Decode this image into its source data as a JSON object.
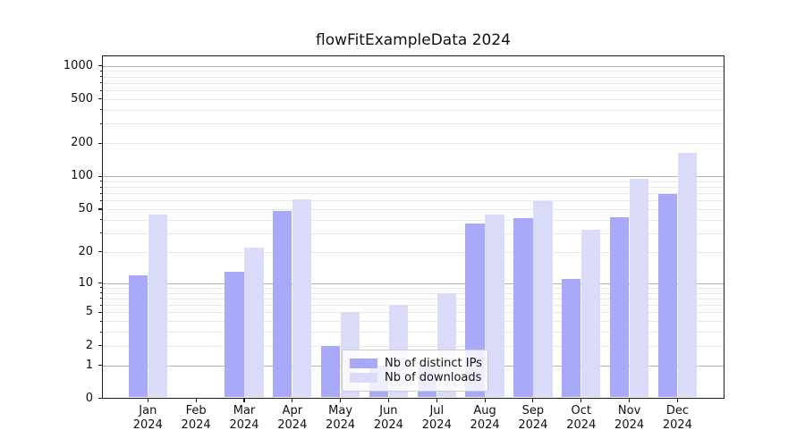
{
  "chart_data": {
    "type": "bar",
    "title": "flowFitExampleData 2024",
    "categories": [
      "Jan\n2024",
      "Feb\n2024",
      "Mar\n2024",
      "Apr\n2024",
      "May\n2024",
      "Jun\n2024",
      "Jul\n2024",
      "Aug\n2024",
      "Sep\n2024",
      "Oct\n2024",
      "Nov\n2024",
      "Dec\n2024"
    ],
    "series": [
      {
        "name": "Nb of distinct IPs",
        "color": "#a9a9f9",
        "values": [
          12,
          0,
          13,
          48,
          2,
          1,
          1,
          37,
          41,
          11,
          42,
          69
        ]
      },
      {
        "name": "Nb of downloads",
        "color": "#dadaf9",
        "values": [
          45,
          0,
          22,
          62,
          5,
          6,
          8,
          45,
          59,
          32,
          95,
          163
        ]
      }
    ],
    "xlabel": "",
    "ylabel": "",
    "yscale": "symlog(log(1+y))",
    "y_ticks": [
      0,
      1,
      2,
      5,
      10,
      20,
      50,
      100,
      200,
      500,
      1000
    ],
    "ylim": [
      0,
      1240
    ],
    "grid": "horizontal, minor log subdivisions",
    "legend_position": "inside lower-center",
    "colors": {
      "major_grid": "#b2b2b2",
      "minor_grid": "#e9e9e9",
      "axis": "#1c1c1c",
      "background": "#ffffff"
    }
  }
}
